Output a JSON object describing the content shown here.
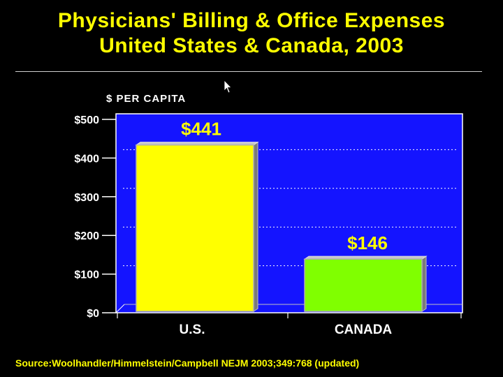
{
  "title_line1": "Physicians' Billing & Office Expenses",
  "title_line2": "United States & Canada, 2003",
  "source": "Source:Woolhandler/Himmelstein/Campbell NEJM 2003;349:768 (updated)",
  "colors": {
    "background": "#000000",
    "title": "#ffff00",
    "plot_area": "#1414ff",
    "us_bar": "#ffff00",
    "canada_bar": "#80ff00",
    "value_label": "#ffff00"
  },
  "chart_data": {
    "type": "bar",
    "ylabel": "$ PER CAPITA",
    "categories": [
      "U.S.",
      "CANADA"
    ],
    "values": [
      441,
      146
    ],
    "value_labels": [
      "$441",
      "$146"
    ],
    "yticks": [
      "$0",
      "$100",
      "$200",
      "$300",
      "$400",
      "$500"
    ],
    "ytick_values": [
      0,
      100,
      200,
      300,
      400,
      500
    ],
    "ylim": [
      0,
      500
    ],
    "grid": true,
    "bar_colors": [
      "#ffff00",
      "#80ff00"
    ]
  }
}
